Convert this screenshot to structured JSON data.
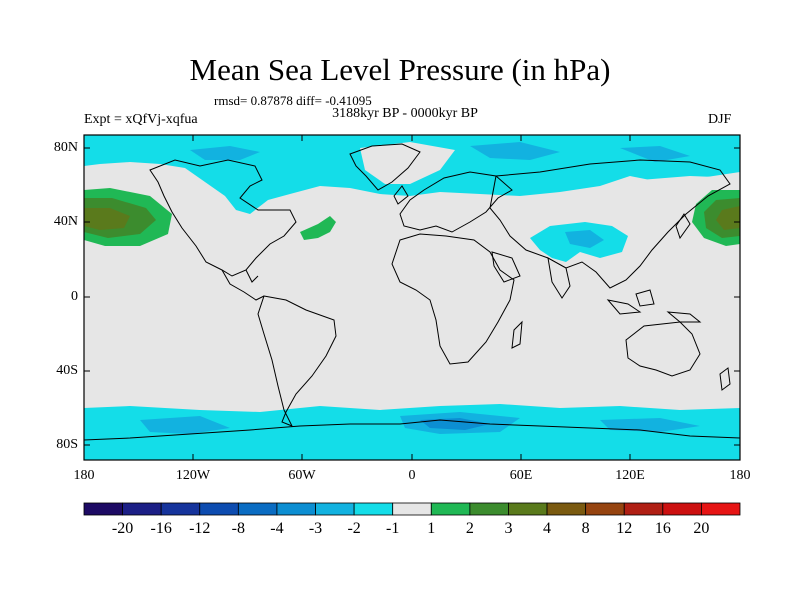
{
  "title": "Mean Sea Level Pressure (in hPa)",
  "stats": "rmsd= 0.87878  diff= -0.41095",
  "period": "3188kyr BP - 0000kyr BP",
  "experiment": "Expt = xQfVj-xqfua",
  "season": "DJF",
  "map": {
    "lat_labels": [
      "80N",
      "40N",
      "0",
      "40S",
      "80S"
    ],
    "lon_labels": [
      "180",
      "120W",
      "60W",
      "0",
      "60E",
      "120E",
      "180"
    ]
  },
  "colorbar": {
    "labels": [
      "-20",
      "-16",
      "-12",
      "-8",
      "-4",
      "-3",
      "-2",
      "-1",
      "1",
      "2",
      "3",
      "4",
      "8",
      "12",
      "16",
      "20"
    ],
    "colors": [
      "#1d0a64",
      "#1c1f86",
      "#16349c",
      "#0d4cb0",
      "#0a6cc2",
      "#0c8ed2",
      "#12b2e0",
      "#14dde8",
      "#e6e6e6",
      "#20b855",
      "#3c8c2e",
      "#5a7a1c",
      "#7a5a10",
      "#964410",
      "#b01f14",
      "#cc1010",
      "#e61414"
    ]
  },
  "colors": {
    "land_neutral": "#e6e6e6",
    "negative_light": "#14dde8",
    "negative_mid": "#12b2e0",
    "negative_dark": "#0c8ed2",
    "negative_deep": "#0a6cc2",
    "positive_light": "#20b855",
    "positive_mid": "#3c8c2e",
    "positive_dark": "#5a7a1c"
  }
}
